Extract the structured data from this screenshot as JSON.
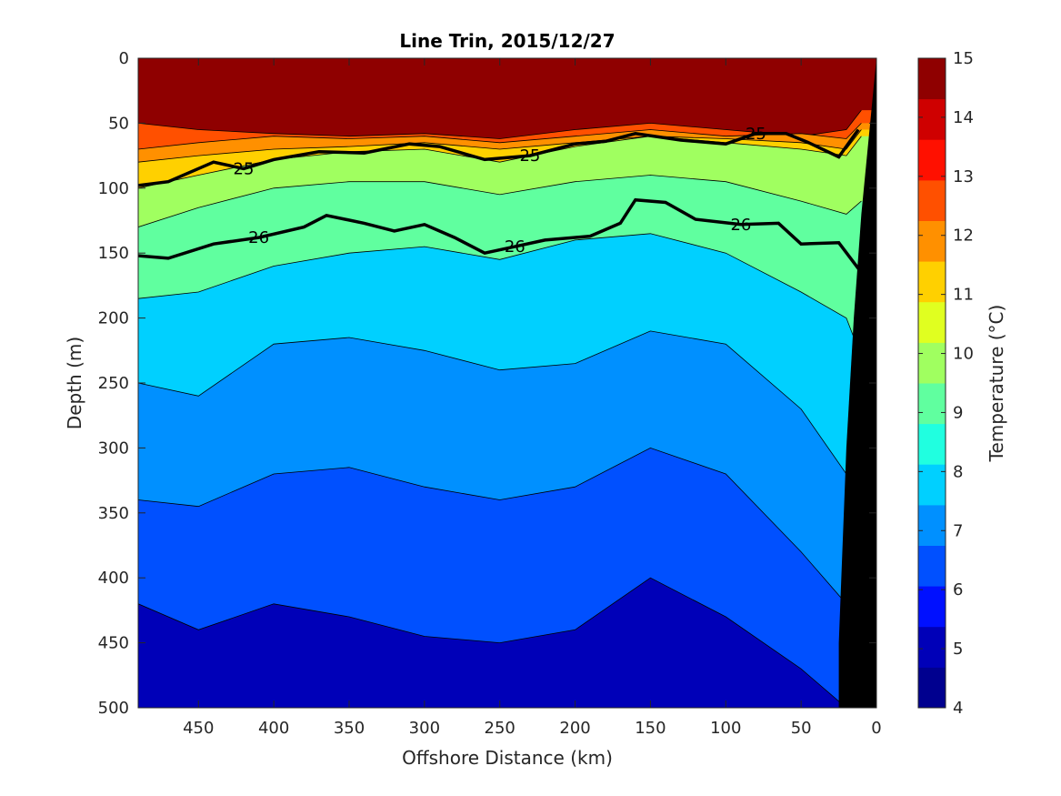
{
  "chart_data": {
    "type": "heatmap",
    "title": "Line Trin, 2015/12/27",
    "xlabel": "Offshore Distance (km)",
    "ylabel": "Depth (m)",
    "xlim": [
      490,
      0
    ],
    "ylim": [
      500,
      0
    ],
    "x_ticks": [
      "450",
      "400",
      "350",
      "300",
      "250",
      "200",
      "150",
      "100",
      "50",
      "0"
    ],
    "y_ticks": [
      "0",
      "50",
      "100",
      "150",
      "200",
      "250",
      "300",
      "350",
      "400",
      "450",
      "500"
    ],
    "colorbar": {
      "label": "Temperature (°C)",
      "range": [
        4,
        15
      ],
      "ticks": [
        "4",
        "5",
        "6",
        "7",
        "8",
        "9",
        "10",
        "11",
        "12",
        "13",
        "14",
        "15"
      ],
      "colors": [
        "#00008f",
        "#0000b8",
        "#0010ff",
        "#0050ff",
        "#0090ff",
        "#00d0ff",
        "#20ffe0",
        "#60ff9f",
        "#a0ff60",
        "#e0ff20",
        "#ffd000",
        "#ff9000",
        "#ff5000",
        "#ff1000",
        "#cf0000",
        "#8f0000"
      ]
    },
    "isotherm_depths_km": [
      490,
      450,
      400,
      350,
      300,
      250,
      200,
      150,
      100,
      50,
      20,
      10
    ],
    "isotherms": [
      {
        "temp": 13,
        "depths": [
          50,
          55,
          58,
          60,
          58,
          62,
          55,
          50,
          55,
          60,
          55,
          40
        ]
      },
      {
        "temp": 12,
        "depths": [
          70,
          65,
          60,
          62,
          60,
          65,
          60,
          55,
          60,
          58,
          62,
          50
        ]
      },
      {
        "temp": 11,
        "depths": [
          80,
          75,
          70,
          68,
          65,
          70,
          65,
          60,
          62,
          65,
          70,
          55
        ]
      },
      {
        "temp": 10,
        "depths": [
          100,
          90,
          78,
          72,
          70,
          80,
          68,
          60,
          65,
          70,
          75,
          60
        ]
      },
      {
        "temp": 9,
        "depths": [
          130,
          115,
          100,
          95,
          95,
          105,
          95,
          90,
          95,
          110,
          120,
          110
        ]
      },
      {
        "temp": 8,
        "depths": [
          185,
          180,
          160,
          150,
          145,
          155,
          140,
          135,
          150,
          180,
          200,
          230
        ]
      },
      {
        "temp": 7,
        "depths": [
          250,
          260,
          220,
          215,
          225,
          240,
          235,
          210,
          220,
          270,
          320,
          380
        ]
      },
      {
        "temp": 6,
        "depths": [
          340,
          345,
          320,
          315,
          330,
          340,
          330,
          300,
          320,
          380,
          420,
          470
        ]
      },
      {
        "temp": 5,
        "depths": [
          420,
          440,
          420,
          430,
          445,
          450,
          440,
          400,
          430,
          470,
          500,
          500
        ]
      }
    ],
    "density_contours": [
      {
        "label": "25",
        "x": [
          490,
          470,
          440,
          420,
          400,
          370,
          340,
          310,
          290,
          260,
          230,
          200,
          180,
          160,
          130,
          100,
          80,
          60,
          45,
          25,
          12
        ],
        "y": [
          98,
          95,
          80,
          85,
          78,
          72,
          73,
          66,
          68,
          78,
          75,
          66,
          64,
          58,
          63,
          66,
          58,
          58,
          65,
          76,
          55
        ]
      },
      {
        "label": "26",
        "x": [
          490,
          470,
          440,
          410,
          380,
          365,
          340,
          320,
          300,
          280,
          260,
          240,
          220,
          190,
          170,
          160,
          140,
          120,
          90,
          65,
          50,
          25,
          10
        ],
        "y": [
          152,
          154,
          143,
          138,
          130,
          121,
          127,
          133,
          128,
          138,
          150,
          145,
          140,
          137,
          127,
          109,
          111,
          124,
          128,
          127,
          143,
          142,
          165
        ]
      }
    ],
    "bathymetry": {
      "x": [
        0,
        5,
        10,
        15,
        20,
        25,
        25
      ],
      "y": [
        0,
        60,
        120,
        200,
        300,
        450,
        500
      ]
    }
  }
}
